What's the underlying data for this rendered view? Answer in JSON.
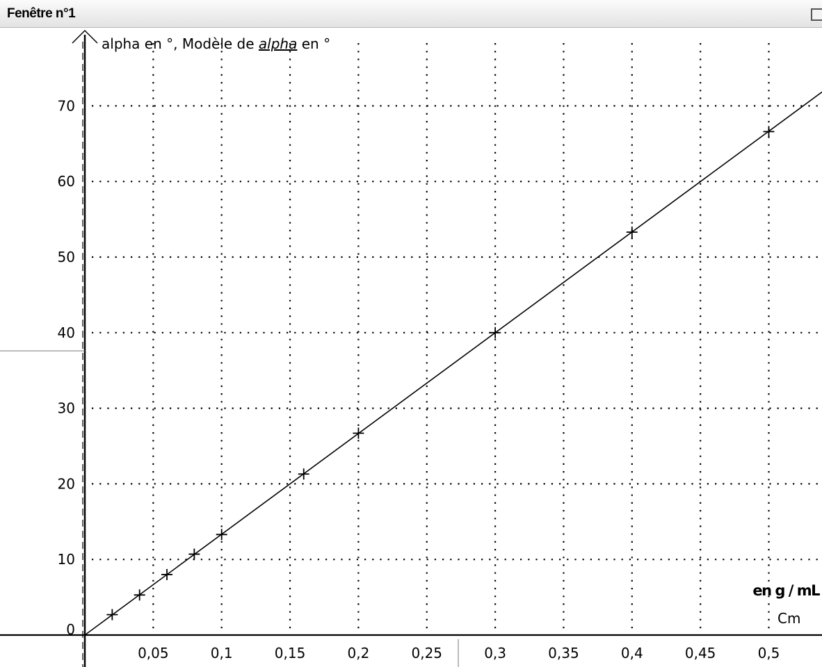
{
  "window": {
    "title": "Fenêtre n°1"
  },
  "chart_data": {
    "type": "scatter",
    "ylabel_prefix": "alpha en °, Modèle de ",
    "ylabel_model": "alpha",
    "ylabel_suffix": " en °",
    "xlabel_unit": "en g / mL",
    "xlabel_var": "Cm",
    "xlim": [
      0,
      0.58
    ],
    "ylim": [
      0,
      76
    ],
    "x_ticks": [
      0.05,
      0.1,
      0.15,
      0.2,
      0.25,
      0.3,
      0.35,
      0.4,
      0.45,
      0.5
    ],
    "x_tick_labels": [
      "0,05",
      "0,1",
      "0,15",
      "0,2",
      "0,25",
      "0,3",
      "0,35",
      "0,4",
      "0,45",
      "0,5"
    ],
    "y_ticks": [
      0,
      10,
      20,
      30,
      40,
      50,
      60,
      70
    ],
    "y_tick_labels": [
      "0",
      "10",
      "20",
      "30",
      "40",
      "50",
      "60",
      "70"
    ],
    "grid": true,
    "series": [
      {
        "points": [
          {
            "x": 0.02,
            "y": 2.7
          },
          {
            "x": 0.04,
            "y": 5.3
          },
          {
            "x": 0.06,
            "y": 8.0
          },
          {
            "x": 0.08,
            "y": 10.7
          },
          {
            "x": 0.1,
            "y": 13.3
          },
          {
            "x": 0.16,
            "y": 21.3
          },
          {
            "x": 0.2,
            "y": 26.7
          },
          {
            "x": 0.3,
            "y": 40.0
          },
          {
            "x": 0.4,
            "y": 53.3
          },
          {
            "x": 0.5,
            "y": 66.6
          }
        ]
      }
    ],
    "model": {
      "slope": 133.3,
      "intercept": 0
    }
  }
}
